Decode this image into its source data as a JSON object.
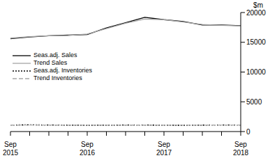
{
  "chart_data": {
    "type": "line",
    "y_label": "$m",
    "categories": [
      "Sep 2015",
      null,
      null,
      null,
      "Sep 2016",
      null,
      null,
      null,
      "Sep 2017",
      null,
      null,
      null,
      "Sep 2018"
    ],
    "ylim": [
      0,
      20000
    ],
    "yticks": [
      0,
      5000,
      10000,
      15000,
      20000
    ],
    "legend": "upper left",
    "series": [
      {
        "name": "Seas.adj. Sales",
        "color": "#000000",
        "line_style": "solid",
        "values": [
          15600,
          15900,
          16100,
          16200,
          16300,
          17400,
          18300,
          19200,
          18800,
          18500,
          17900,
          17900,
          17800
        ]
      },
      {
        "name": "Trend Sales",
        "color": "#a6a6a6",
        "line_style": "solid",
        "values": [
          15700,
          15950,
          16100,
          16150,
          16400,
          17300,
          18200,
          18900,
          18800,
          18400,
          18000,
          17850,
          17750
        ]
      },
      {
        "name": "Seas.adj. Inventories",
        "color": "#000000",
        "line_style": "dotted",
        "values": [
          1100,
          1120,
          1100,
          1080,
          1050,
          1070,
          1090,
          1100,
          1060,
          1050,
          1080,
          1100,
          1090
        ]
      },
      {
        "name": "Trend Inventories",
        "color": "#a6a6a6",
        "line_style": "dashed",
        "values": [
          1080,
          1090,
          1090,
          1070,
          1060,
          1070,
          1080,
          1080,
          1070,
          1070,
          1080,
          1090,
          1090
        ]
      }
    ]
  }
}
